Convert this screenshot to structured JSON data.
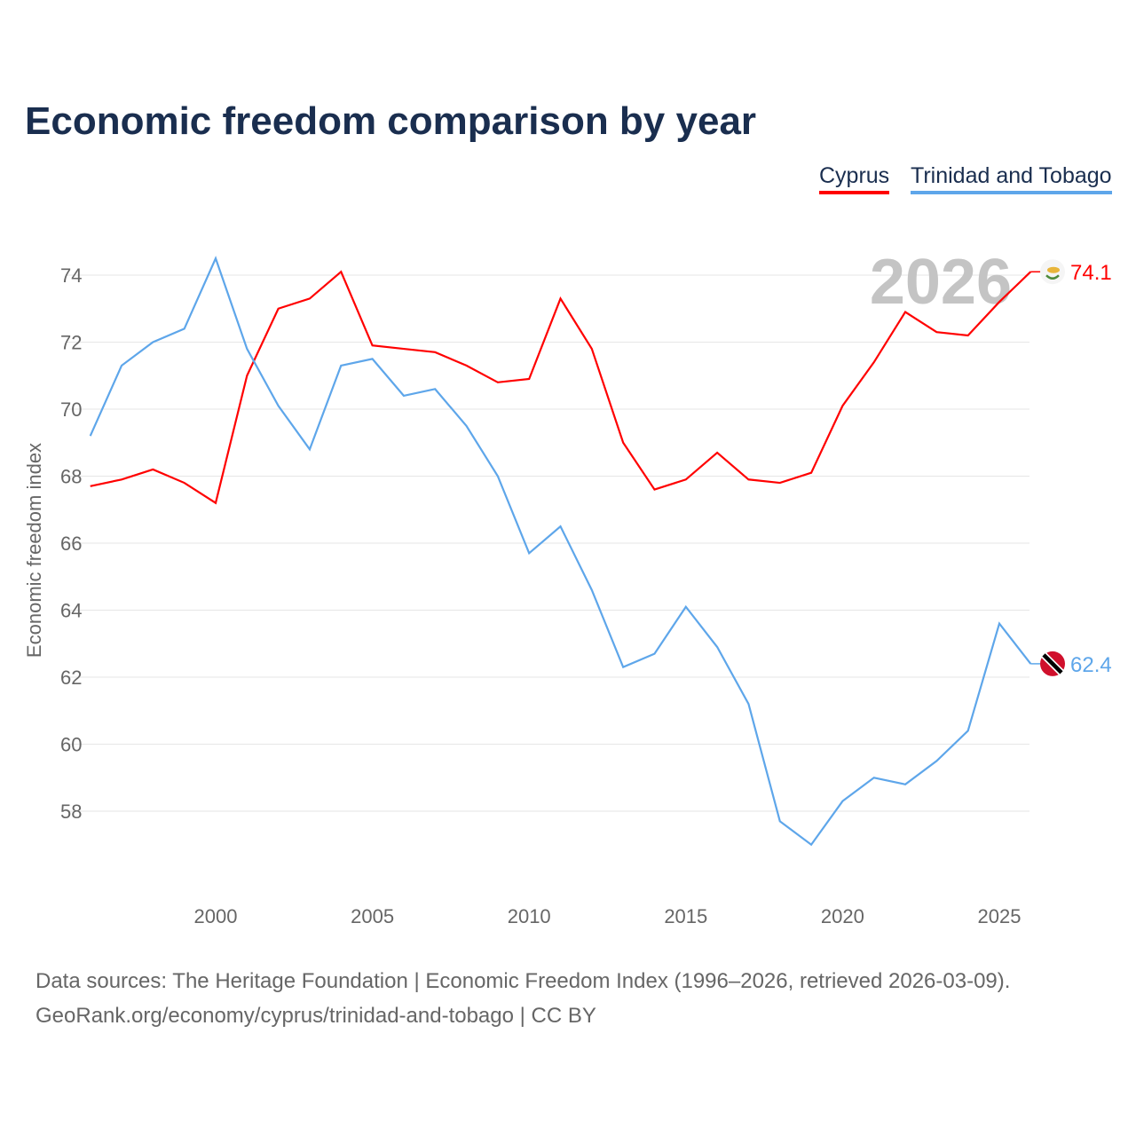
{
  "title": "Economic freedom comparison by year",
  "source_line1": "Data sources: The Heritage Foundation | Economic Freedom Index (1996–2026, retrieved 2026-03-09).",
  "source_line2": "GeoRank.org/economy/cyprus/trinidad-and-tobago | CC BY",
  "chart_data": {
    "type": "line",
    "title": "Economic freedom comparison by year",
    "xlabel": "",
    "ylabel": "Economic freedom index",
    "xlim": [
      1996,
      2026
    ],
    "ylim": [
      56,
      75.5
    ],
    "x_ticks": [
      2000,
      2005,
      2010,
      2015,
      2020,
      2025
    ],
    "y_ticks": [
      58,
      60,
      62,
      64,
      66,
      68,
      70,
      72,
      74
    ],
    "watermark_year": "2026",
    "legend_position": "top-right",
    "x": [
      1996,
      1997,
      1998,
      1999,
      2000,
      2001,
      2002,
      2003,
      2004,
      2005,
      2006,
      2007,
      2008,
      2009,
      2010,
      2011,
      2012,
      2013,
      2014,
      2015,
      2016,
      2017,
      2018,
      2019,
      2020,
      2021,
      2022,
      2023,
      2024,
      2025,
      2026
    ],
    "series": [
      {
        "name": "Cyprus",
        "color": "#ff0000",
        "end_label": "74.1",
        "icon": "cyprus-flag-icon",
        "values": [
          67.7,
          67.9,
          68.2,
          67.8,
          67.2,
          71.0,
          73.0,
          73.3,
          74.1,
          71.9,
          71.8,
          71.7,
          71.3,
          70.8,
          70.9,
          73.3,
          71.8,
          69.0,
          67.6,
          67.9,
          68.7,
          67.9,
          67.8,
          68.1,
          70.1,
          71.4,
          72.9,
          72.3,
          72.2,
          73.2,
          74.1
        ]
      },
      {
        "name": "Trinidad and Tobago",
        "color": "#5ea6ea",
        "end_label": "62.4",
        "icon": "trinidad-flag-icon",
        "values": [
          69.2,
          71.3,
          72.0,
          72.4,
          74.5,
          71.8,
          70.1,
          68.8,
          71.3,
          71.5,
          70.4,
          70.6,
          69.5,
          68.0,
          65.7,
          66.5,
          64.6,
          62.3,
          62.7,
          64.1,
          62.9,
          61.2,
          57.7,
          57.0,
          58.3,
          59.0,
          58.8,
          59.5,
          60.4,
          63.6,
          62.4
        ]
      }
    ]
  }
}
